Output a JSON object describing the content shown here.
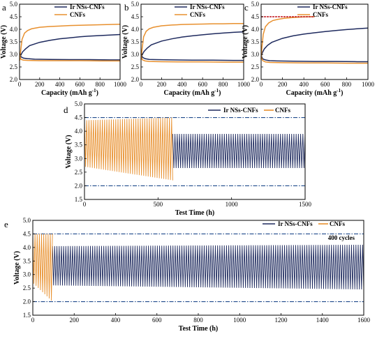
{
  "colors": {
    "ir": "#1e2a5e",
    "cnf": "#e8902e",
    "ref_line": "#1f4a8c",
    "red_line": "#c0141c"
  },
  "legend": {
    "ir": "Ir NSs-CNFs",
    "cnf": "CNFs"
  },
  "chart_data": [
    {
      "id": "a",
      "type": "line",
      "panel_label": "a",
      "xlabel": "Capacity (mAh g",
      "xlabel_sup": "-1",
      "xlabel_close": ")",
      "ylabel": "Voltage (V)",
      "xlim": [
        0,
        1000
      ],
      "ylim": [
        2.0,
        5.0
      ],
      "xticks": [
        0,
        200,
        400,
        600,
        800,
        1000
      ],
      "yticks": [
        2.0,
        2.5,
        3.0,
        3.5,
        4.0,
        4.5,
        5.0
      ],
      "series": [
        {
          "name": "Ir NSs-CNFs",
          "color_key": "ir",
          "segments": [
            {
              "x": [
                0,
                10,
                30,
                60,
                100,
                200,
                300,
                400,
                500,
                600,
                700,
                800,
                900,
                1000
              ],
              "y": [
                2.82,
                2.95,
                3.1,
                3.22,
                3.35,
                3.48,
                3.56,
                3.62,
                3.66,
                3.7,
                3.73,
                3.75,
                3.77,
                3.79
              ]
            },
            {
              "x": [
                0,
                15,
                40,
                80,
                150,
                300,
                500,
                700,
                900,
                1000
              ],
              "y": [
                3.05,
                2.9,
                2.85,
                2.83,
                2.81,
                2.8,
                2.79,
                2.79,
                2.78,
                2.78
              ]
            }
          ]
        },
        {
          "name": "CNFs",
          "color_key": "cnf",
          "segments": [
            {
              "x": [
                0,
                10,
                25,
                50,
                80,
                120,
                200,
                300,
                400,
                500,
                600,
                700,
                800,
                900,
                1000
              ],
              "y": [
                2.75,
                3.1,
                3.6,
                3.85,
                3.95,
                4.02,
                4.08,
                4.11,
                4.13,
                4.15,
                4.16,
                4.17,
                4.18,
                4.19,
                4.2
              ]
            },
            {
              "x": [
                0,
                15,
                40,
                80,
                200,
                400,
                600,
                800,
                1000
              ],
              "y": [
                2.95,
                2.8,
                2.77,
                2.76,
                2.75,
                2.75,
                2.75,
                2.74,
                2.74
              ]
            }
          ]
        }
      ]
    },
    {
      "id": "b",
      "type": "line",
      "panel_label": "b",
      "xlabel": "Capacity (mAh g",
      "xlabel_sup": "-1",
      "xlabel_close": ")",
      "ylabel": "Voltage (V)",
      "xlim": [
        0,
        1000
      ],
      "ylim": [
        2.0,
        5.0
      ],
      "xticks": [
        0,
        200,
        400,
        600,
        800,
        1000
      ],
      "yticks": [
        2.0,
        2.5,
        3.0,
        3.5,
        4.0,
        4.5,
        5.0
      ],
      "series": [
        {
          "name": "Ir NSs-CNFs",
          "color_key": "ir",
          "segments": [
            {
              "x": [
                0,
                10,
                30,
                60,
                100,
                200,
                300,
                400,
                500,
                600,
                700,
                800,
                900,
                1000
              ],
              "y": [
                2.85,
                2.98,
                3.12,
                3.25,
                3.38,
                3.53,
                3.62,
                3.69,
                3.74,
                3.78,
                3.82,
                3.85,
                3.88,
                3.9
              ]
            },
            {
              "x": [
                0,
                15,
                40,
                80,
                150,
                300,
                500,
                700,
                900,
                1000
              ],
              "y": [
                3.02,
                2.88,
                2.83,
                2.8,
                2.79,
                2.78,
                2.77,
                2.77,
                2.76,
                2.76
              ]
            }
          ]
        },
        {
          "name": "CNFs",
          "color_key": "cnf",
          "segments": [
            {
              "x": [
                0,
                10,
                25,
                50,
                80,
                120,
                200,
                300,
                400,
                500,
                600,
                700,
                800,
                900,
                1000
              ],
              "y": [
                2.78,
                3.2,
                3.7,
                3.92,
                4.02,
                4.08,
                4.14,
                4.17,
                4.19,
                4.2,
                4.21,
                4.22,
                4.22,
                4.23,
                4.23
              ]
            },
            {
              "x": [
                0,
                15,
                40,
                80,
                200,
                400,
                600,
                800,
                1000
              ],
              "y": [
                2.92,
                2.78,
                2.74,
                2.72,
                2.71,
                2.7,
                2.7,
                2.69,
                2.69
              ]
            }
          ]
        }
      ]
    },
    {
      "id": "c",
      "type": "line",
      "panel_label": "c",
      "xlabel": "Capacity (mAh g",
      "xlabel_sup": "-1",
      "xlabel_close": ")",
      "ylabel": "Voltage (V)",
      "xlim": [
        0,
        1000
      ],
      "ylim": [
        2.0,
        5.0
      ],
      "xticks": [
        0,
        200,
        400,
        600,
        800,
        1000
      ],
      "yticks": [
        2.0,
        2.5,
        3.0,
        3.5,
        4.0,
        4.5,
        5.0
      ],
      "series": [
        {
          "name": "Ir NSs-CNFs",
          "color_key": "ir",
          "segments": [
            {
              "x": [
                0,
                10,
                30,
                60,
                100,
                200,
                300,
                400,
                500,
                600,
                700,
                800,
                900,
                1000
              ],
              "y": [
                2.9,
                3.05,
                3.22,
                3.36,
                3.48,
                3.64,
                3.74,
                3.81,
                3.86,
                3.91,
                3.95,
                3.99,
                4.02,
                4.05
              ]
            },
            {
              "x": [
                0,
                15,
                40,
                80,
                150,
                300,
                500,
                700,
                900,
                1000
              ],
              "y": [
                2.95,
                2.82,
                2.78,
                2.75,
                2.74,
                2.73,
                2.72,
                2.72,
                2.71,
                2.71
              ]
            }
          ]
        },
        {
          "name": "CNFs",
          "color_key": "cnf",
          "segments": [
            {
              "x": [
                0,
                8,
                20,
                40,
                70,
                110,
                160,
                220,
                300,
                380,
                450,
                500
              ],
              "y": [
                2.8,
                3.3,
                3.8,
                4.1,
                4.25,
                4.35,
                4.4,
                4.44,
                4.47,
                4.49,
                4.5,
                4.5
              ]
            },
            {
              "x": [
                0,
                15,
                40,
                80,
                200,
                400,
                600,
                800,
                1000
              ],
              "y": [
                2.9,
                2.75,
                2.7,
                2.68,
                2.67,
                2.66,
                2.66,
                2.65,
                2.65
              ]
            }
          ]
        },
        {
          "name": "",
          "color_key": "red_line",
          "segments": [
            {
              "x": [
                0,
                500
              ],
              "y": [
                4.5,
                4.5
              ]
            }
          ]
        }
      ]
    },
    {
      "id": "d",
      "type": "line",
      "panel_label": "d",
      "xlabel": "Test Time (h)",
      "ylabel": "Voltage (V)",
      "xlim": [
        0,
        1500
      ],
      "ylim": [
        1.5,
        5.0
      ],
      "xticks": [
        0,
        500,
        1000,
        1500
      ],
      "yticks": [
        1.5,
        2.0,
        2.5,
        3.0,
        3.5,
        4.0,
        4.5,
        5.0
      ],
      "ref_lines": [
        2.0,
        4.5
      ],
      "cycling": [
        {
          "name": "Ir NSs-CNFs",
          "color_key": "ir",
          "x_range": [
            600,
            1500
          ],
          "top": [
            3.9,
            3.9
          ],
          "bottom": [
            2.65,
            2.65
          ]
        },
        {
          "name": "CNFs",
          "color_key": "cnf",
          "x_range": [
            0,
            600
          ],
          "top": [
            4.4,
            4.5
          ],
          "bottom": [
            2.7,
            2.2
          ]
        }
      ]
    },
    {
      "id": "e",
      "type": "line",
      "panel_label": "e",
      "xlabel": "Test Time (h)",
      "ylabel": "Voltage (V)",
      "xlim": [
        0,
        1600
      ],
      "ylim": [
        1.5,
        5.0
      ],
      "xticks": [
        0,
        200,
        400,
        600,
        800,
        1000,
        1200,
        1400,
        1600
      ],
      "yticks": [
        1.5,
        2.0,
        2.5,
        3.0,
        3.5,
        4.0,
        4.5,
        5.0
      ],
      "ref_lines": [
        2.0,
        4.5
      ],
      "annotation": "400 cycles",
      "cycling": [
        {
          "name": "Ir NSs-CNFs",
          "color_key": "ir",
          "x_range": [
            95,
            1600
          ],
          "top": [
            4.05,
            4.1
          ],
          "bottom": [
            2.6,
            2.45
          ]
        },
        {
          "name": "CNFs",
          "color_key": "cnf",
          "x_range": [
            0,
            95
          ],
          "top": [
            4.5,
            4.5
          ],
          "bottom": [
            2.7,
            2.0
          ]
        }
      ]
    }
  ]
}
